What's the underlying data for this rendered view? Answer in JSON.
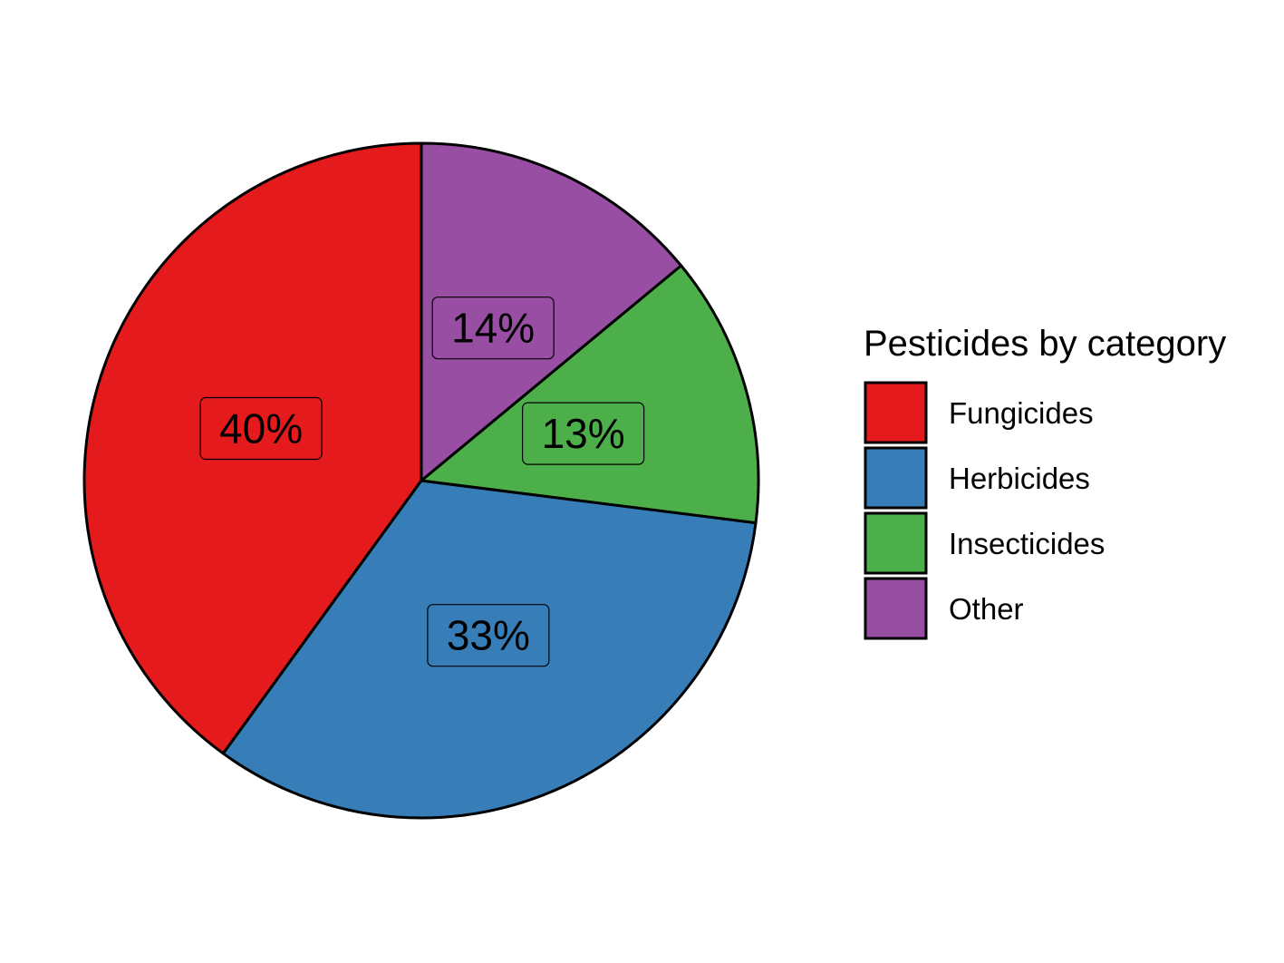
{
  "chart_data": {
    "type": "pie",
    "title": "",
    "categories": [
      "Fungicides",
      "Herbicides",
      "Insecticides",
      "Other"
    ],
    "values": [
      40,
      33,
      13,
      14
    ],
    "labels": [
      "40%",
      "33%",
      "13%",
      "14%"
    ],
    "colors": [
      "#e41a1c",
      "#377eb8",
      "#4daf4a",
      "#984ea3"
    ],
    "legend": {
      "title": "Pesticides by category",
      "position": "right",
      "items": [
        "Fungicides",
        "Herbicides",
        "Insecticides",
        "Other"
      ]
    },
    "direction": "counterclockwise",
    "start": "top"
  }
}
